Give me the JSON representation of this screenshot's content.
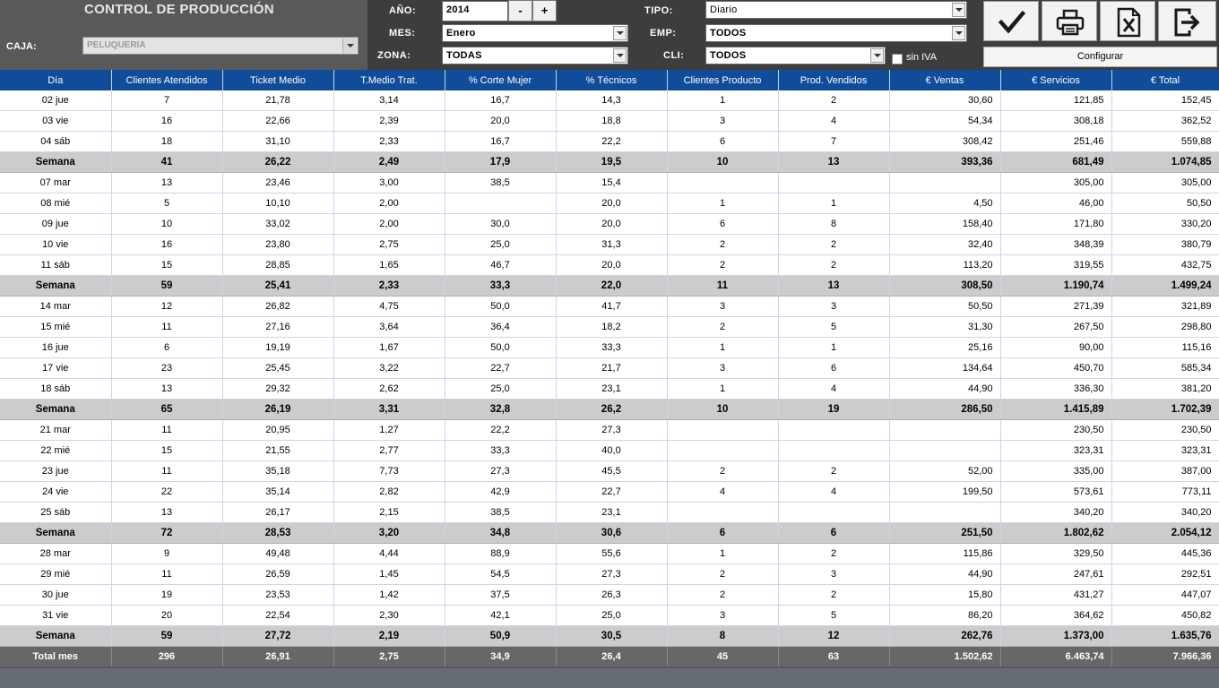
{
  "header": {
    "title": "CONTROL DE PRODUCCIÓN",
    "caja_label": "CAJA:",
    "caja_value": "PELUQUERIA",
    "anio_label": "AÑO:",
    "anio_value": "2014",
    "minus_label": "-",
    "plus_label": "+",
    "mes_label": "MES:",
    "mes_value": "Enero",
    "zona_label": "ZONA:",
    "zona_value": "TODAS",
    "tipo_label": "TIPO:",
    "tipo_value": "Diario",
    "emp_label": "EMP:",
    "emp_value": "TODOS",
    "cli_label": "CLI:",
    "cli_value": "TODOS",
    "sin_iva_label": "sin IVA",
    "configurar_label": "Configurar",
    "icons": [
      "check-icon",
      "printer-icon",
      "excel-icon",
      "exit-icon"
    ]
  },
  "table": {
    "columns": [
      "Día",
      "Clientes Atendidos",
      "Ticket Medio",
      "T.Medio Trat.",
      "% Corte Mujer",
      "% Técnicos",
      "Clientes Producto",
      "Prod. Vendidos",
      "€ Ventas",
      "€ Servicios",
      "€ Total"
    ],
    "rows": [
      {
        "type": "day",
        "cells": [
          "02 jue",
          "7",
          "21,78",
          "3,14",
          "16,7",
          "14,3",
          "1",
          "2",
          "30,60",
          "121,85",
          "152,45"
        ]
      },
      {
        "type": "day",
        "cells": [
          "03 vie",
          "16",
          "22,66",
          "2,39",
          "20,0",
          "18,8",
          "3",
          "4",
          "54,34",
          "308,18",
          "362,52"
        ]
      },
      {
        "type": "day",
        "cells": [
          "04 sáb",
          "18",
          "31,10",
          "2,33",
          "16,7",
          "22,2",
          "6",
          "7",
          "308,42",
          "251,46",
          "559,88"
        ]
      },
      {
        "type": "week",
        "cells": [
          "Semana",
          "41",
          "26,22",
          "2,49",
          "17,9",
          "19,5",
          "10",
          "13",
          "393,36",
          "681,49",
          "1.074,85"
        ]
      },
      {
        "type": "day",
        "cells": [
          "07 mar",
          "13",
          "23,46",
          "3,00",
          "38,5",
          "15,4",
          "",
          "",
          "",
          "305,00",
          "305,00"
        ]
      },
      {
        "type": "day",
        "cells": [
          "08 mié",
          "5",
          "10,10",
          "2,00",
          "",
          "20,0",
          "1",
          "1",
          "4,50",
          "46,00",
          "50,50"
        ]
      },
      {
        "type": "day",
        "cells": [
          "09 jue",
          "10",
          "33,02",
          "2,00",
          "30,0",
          "20,0",
          "6",
          "8",
          "158,40",
          "171,80",
          "330,20"
        ]
      },
      {
        "type": "day",
        "cells": [
          "10 vie",
          "16",
          "23,80",
          "2,75",
          "25,0",
          "31,3",
          "2",
          "2",
          "32,40",
          "348,39",
          "380,79"
        ]
      },
      {
        "type": "day",
        "cells": [
          "11 sáb",
          "15",
          "28,85",
          "1,65",
          "46,7",
          "20,0",
          "2",
          "2",
          "113,20",
          "319,55",
          "432,75"
        ]
      },
      {
        "type": "week",
        "cells": [
          "Semana",
          "59",
          "25,41",
          "2,33",
          "33,3",
          "22,0",
          "11",
          "13",
          "308,50",
          "1.190,74",
          "1.499,24"
        ]
      },
      {
        "type": "day",
        "cells": [
          "14 mar",
          "12",
          "26,82",
          "4,75",
          "50,0",
          "41,7",
          "3",
          "3",
          "50,50",
          "271,39",
          "321,89"
        ]
      },
      {
        "type": "day",
        "cells": [
          "15 mié",
          "11",
          "27,16",
          "3,64",
          "36,4",
          "18,2",
          "2",
          "5",
          "31,30",
          "267,50",
          "298,80"
        ]
      },
      {
        "type": "day",
        "cells": [
          "16 jue",
          "6",
          "19,19",
          "1,67",
          "50,0",
          "33,3",
          "1",
          "1",
          "25,16",
          "90,00",
          "115,16"
        ]
      },
      {
        "type": "day",
        "cells": [
          "17 vie",
          "23",
          "25,45",
          "3,22",
          "22,7",
          "21,7",
          "3",
          "6",
          "134,64",
          "450,70",
          "585,34"
        ]
      },
      {
        "type": "day",
        "cells": [
          "18 sáb",
          "13",
          "29,32",
          "2,62",
          "25,0",
          "23,1",
          "1",
          "4",
          "44,90",
          "336,30",
          "381,20"
        ]
      },
      {
        "type": "week",
        "cells": [
          "Semana",
          "65",
          "26,19",
          "3,31",
          "32,8",
          "26,2",
          "10",
          "19",
          "286,50",
          "1.415,89",
          "1.702,39"
        ]
      },
      {
        "type": "day",
        "cells": [
          "21 mar",
          "11",
          "20,95",
          "1,27",
          "22,2",
          "27,3",
          "",
          "",
          "",
          "230,50",
          "230,50"
        ]
      },
      {
        "type": "day",
        "cells": [
          "22 mié",
          "15",
          "21,55",
          "2,77",
          "33,3",
          "40,0",
          "",
          "",
          "",
          "323,31",
          "323,31"
        ]
      },
      {
        "type": "day",
        "cells": [
          "23 jue",
          "11",
          "35,18",
          "7,73",
          "27,3",
          "45,5",
          "2",
          "2",
          "52,00",
          "335,00",
          "387,00"
        ]
      },
      {
        "type": "day",
        "cells": [
          "24 vie",
          "22",
          "35,14",
          "2,82",
          "42,9",
          "22,7",
          "4",
          "4",
          "199,50",
          "573,61",
          "773,11"
        ]
      },
      {
        "type": "day",
        "cells": [
          "25 sáb",
          "13",
          "26,17",
          "2,15",
          "38,5",
          "23,1",
          "",
          "",
          "",
          "340,20",
          "340,20"
        ]
      },
      {
        "type": "week",
        "cells": [
          "Semana",
          "72",
          "28,53",
          "3,20",
          "34,8",
          "30,6",
          "6",
          "6",
          "251,50",
          "1.802,62",
          "2.054,12"
        ]
      },
      {
        "type": "day",
        "cells": [
          "28 mar",
          "9",
          "49,48",
          "4,44",
          "88,9",
          "55,6",
          "1",
          "2",
          "115,86",
          "329,50",
          "445,36"
        ]
      },
      {
        "type": "day",
        "cells": [
          "29 mié",
          "11",
          "26,59",
          "1,45",
          "54,5",
          "27,3",
          "2",
          "3",
          "44,90",
          "247,61",
          "292,51"
        ]
      },
      {
        "type": "day",
        "cells": [
          "30 jue",
          "19",
          "23,53",
          "1,42",
          "37,5",
          "26,3",
          "2",
          "2",
          "15,80",
          "431,27",
          "447,07"
        ]
      },
      {
        "type": "day",
        "cells": [
          "31 vie",
          "20",
          "22,54",
          "2,30",
          "42,1",
          "25,0",
          "3",
          "5",
          "86,20",
          "364,62",
          "450,82"
        ]
      },
      {
        "type": "week",
        "cells": [
          "Semana",
          "59",
          "27,72",
          "2,19",
          "50,9",
          "30,5",
          "8",
          "12",
          "262,76",
          "1.373,00",
          "1.635,76"
        ]
      }
    ],
    "total": [
      "Total mes",
      "296",
      "26,91",
      "2,75",
      "34,9",
      "26,4",
      "45",
      "63",
      "1.502,62",
      "6.463,74",
      "7.966,36"
    ]
  }
}
